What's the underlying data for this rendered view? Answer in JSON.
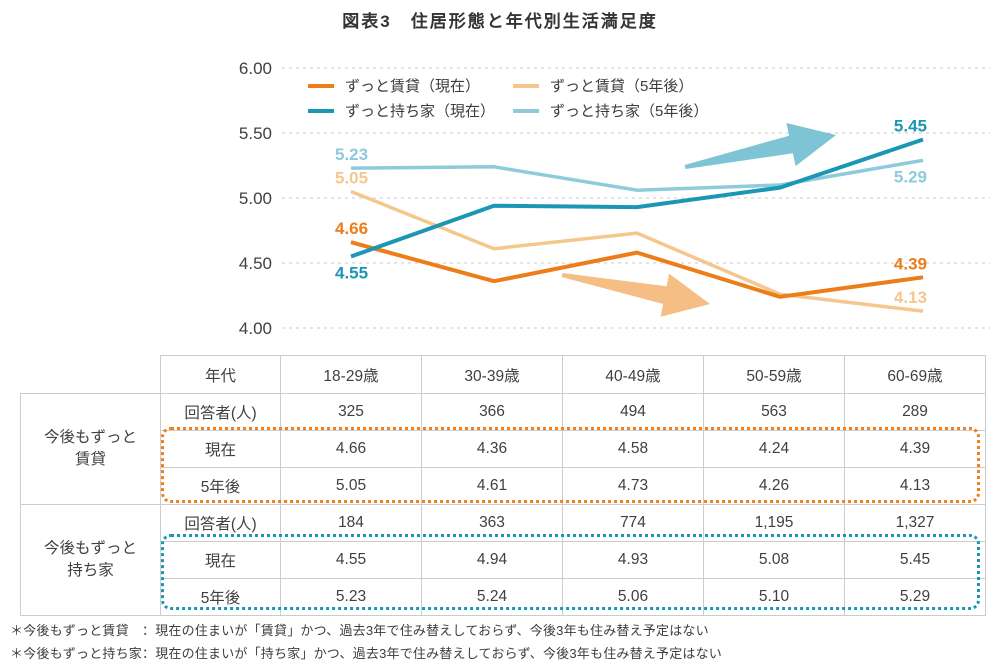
{
  "title": "図表3　住居形態と年代別生活満足度",
  "chart_data": {
    "type": "line",
    "title": "",
    "categories": [
      "18-29歳",
      "30-39歳",
      "40-49歳",
      "50-59歳",
      "60-69歳"
    ],
    "series": [
      {
        "name": "ずっと賃貸（現在）",
        "color": "#ec7d18",
        "values": [
          4.66,
          4.36,
          4.58,
          4.24,
          4.39
        ]
      },
      {
        "name": "ずっと賃貸（5年後）",
        "color": "#f5c78e",
        "values": [
          5.05,
          4.61,
          4.73,
          4.26,
          4.13
        ]
      },
      {
        "name": "ずっと持ち家（現在）",
        "color": "#1b96b4",
        "values": [
          4.55,
          4.94,
          4.93,
          5.08,
          5.45
        ]
      },
      {
        "name": "ずっと持ち家（5年後）",
        "color": "#8dcbda",
        "values": [
          5.23,
          5.24,
          5.06,
          5.1,
          5.29
        ]
      }
    ],
    "ylim": [
      4.0,
      6.0
    ],
    "yticks": [
      6.0,
      5.5,
      5.0,
      4.5,
      4.0
    ],
    "grid": "horizontal-dashed",
    "legend_position": "top-left-inside",
    "annotations": [
      {
        "type": "arrow",
        "direction": "up-right",
        "color": "#7ec4d5"
      },
      {
        "type": "arrow",
        "direction": "down-right",
        "color": "#f5be84"
      }
    ]
  },
  "table": {
    "header": [
      "年代",
      "18-29歳",
      "30-39歳",
      "40-49歳",
      "50-59歳",
      "60-69歳"
    ],
    "groups": [
      {
        "label": "今後もずっと\n賃貸",
        "highlight_color": "#ee7f1c",
        "rows": [
          {
            "label": "回答者(人)",
            "values": [
              "325",
              "366",
              "494",
              "563",
              "289"
            ]
          },
          {
            "label": "現在",
            "values": [
              "4.66",
              "4.36",
              "4.58",
              "4.24",
              "4.39"
            ]
          },
          {
            "label": "5年後",
            "values": [
              "5.05",
              "4.61",
              "4.73",
              "4.26",
              "4.13"
            ]
          }
        ]
      },
      {
        "label": "今後もずっと\n持ち家",
        "highlight_color": "#1b96b4",
        "rows": [
          {
            "label": "回答者(人)",
            "values": [
              "184",
              "363",
              "774",
              "1,195",
              "1,327"
            ]
          },
          {
            "label": "現在",
            "values": [
              "4.55",
              "4.94",
              "4.93",
              "5.08",
              "5.45"
            ]
          },
          {
            "label": "5年後",
            "values": [
              "5.23",
              "5.24",
              "5.06",
              "5.10",
              "5.29"
            ]
          }
        ]
      }
    ]
  },
  "footnotes": [
    "＊今後もずっと賃貸　：現在の住まいが「賃貸」かつ、過去3年で住み替えしておらず、今後3年も住み替え予定はない",
    "＊今後もずっと持ち家：現在の住まいが「持ち家」かつ、過去3年で住み替えしておらず、今後3年も住み替え予定はない"
  ]
}
